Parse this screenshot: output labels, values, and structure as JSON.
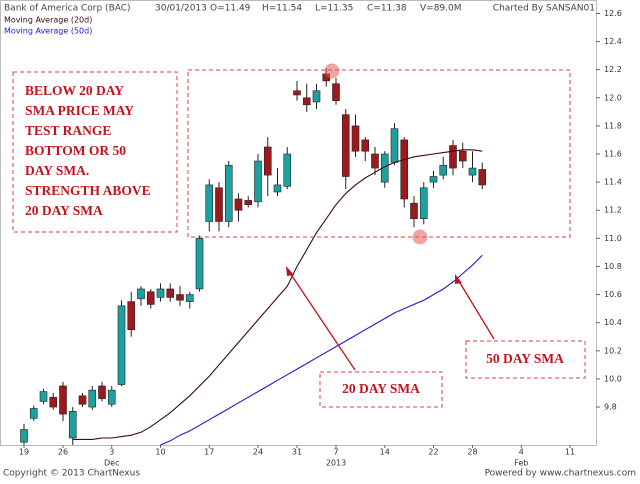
{
  "header": {
    "title": "Bank of America Corp (BAC)",
    "date": "30/01/2013",
    "open": "O=11.49",
    "high": "H=11.54",
    "low": "L=11.35",
    "close": "C=11.38",
    "volume": "V=89.0M",
    "credit": "Charted By SANSAN01"
  },
  "footer": {
    "copyright": "Copyright © 2013 ChartNexus",
    "powered": "Powered by www.chartnexus.com"
  },
  "annotations": {
    "note_lines": [
      "BELOW 20 DAY",
      "SMA PRICE MAY",
      "TEST RANGE",
      "BOTTOM OR 50",
      "DAY SMA.",
      "STRENGTH ABOVE",
      "20 DAY SMA"
    ],
    "sma20_label": "20 DAY SMA",
    "sma50_label": "50 DAY SMA"
  },
  "chart_data": {
    "type": "candlestick",
    "categories": [
      "19",
      null,
      null,
      null,
      "26",
      null,
      null,
      null,
      null,
      "3",
      null,
      null,
      null,
      null,
      "10",
      null,
      null,
      null,
      null,
      "17",
      null,
      null,
      null,
      null,
      "24",
      null,
      null,
      null,
      "31",
      null,
      null,
      null,
      "7",
      null,
      null,
      null,
      null,
      "14",
      null,
      null,
      null,
      null,
      "22",
      null,
      null,
      null,
      "28",
      null,
      null,
      null,
      null,
      "4",
      null,
      null,
      null,
      null,
      "11"
    ],
    "periods": [
      null,
      null,
      null,
      null,
      null,
      null,
      null,
      null,
      null,
      "Dec",
      null,
      null,
      null,
      null,
      null,
      null,
      null,
      null,
      null,
      null,
      null,
      null,
      null,
      null,
      null,
      null,
      null,
      null,
      null,
      null,
      null,
      null,
      "2013",
      null,
      null,
      null,
      null,
      null,
      null,
      null,
      null,
      null,
      null,
      null,
      null,
      null,
      null,
      null,
      null,
      null,
      null,
      "Feb",
      null,
      null,
      null,
      null,
      null
    ],
    "open": [
      9.55,
      9.72,
      9.84,
      9.87,
      9.95,
      9.58,
      9.88,
      9.8,
      9.95,
      9.82,
      9.96,
      10.55,
      10.57,
      10.62,
      10.58,
      10.64,
      10.6,
      10.55,
      10.64,
      11.12,
      11.36,
      11.12,
      11.28,
      11.27,
      11.26,
      11.65,
      11.33,
      11.37,
      12.05,
      12.0,
      11.97,
      12.17,
      12.1,
      11.88,
      11.8,
      11.7,
      11.6,
      11.4,
      11.54,
      11.7,
      11.25,
      11.14,
      11.4,
      11.45,
      11.66,
      11.62,
      11.45,
      11.49,
      null,
      null,
      null,
      null,
      null,
      null,
      null,
      null,
      null
    ],
    "high": [
      9.68,
      9.81,
      9.93,
      9.9,
      9.98,
      9.8,
      9.9,
      9.95,
      9.98,
      9.95,
      10.56,
      10.62,
      10.66,
      10.64,
      10.68,
      10.68,
      10.66,
      10.62,
      11.02,
      11.42,
      11.4,
      11.55,
      11.32,
      11.3,
      11.6,
      11.72,
      11.5,
      11.65,
      12.12,
      12.1,
      12.1,
      12.21,
      12.14,
      11.92,
      11.88,
      11.72,
      11.65,
      11.62,
      11.82,
      11.72,
      11.3,
      11.4,
      11.48,
      11.58,
      11.7,
      11.68,
      11.62,
      11.54,
      null,
      null,
      null,
      null,
      null,
      null,
      null,
      null,
      null
    ],
    "low": [
      9.53,
      9.7,
      9.82,
      9.78,
      9.7,
      9.53,
      9.8,
      9.78,
      9.84,
      9.8,
      9.95,
      10.3,
      10.52,
      10.5,
      10.55,
      10.55,
      10.52,
      10.5,
      10.62,
      11.05,
      11.05,
      11.08,
      11.12,
      11.22,
      11.22,
      11.3,
      11.3,
      11.35,
      11.98,
      11.9,
      11.92,
      12.08,
      11.95,
      11.35,
      11.58,
      11.55,
      11.45,
      11.36,
      11.52,
      11.22,
      11.08,
      11.1,
      11.36,
      11.42,
      11.45,
      11.5,
      11.4,
      11.35,
      null,
      null,
      null,
      null,
      null,
      null,
      null,
      null,
      null
    ],
    "close": [
      9.64,
      9.79,
      9.91,
      9.8,
      9.75,
      9.77,
      9.82,
      9.92,
      9.86,
      9.92,
      10.52,
      10.35,
      10.64,
      10.53,
      10.64,
      10.58,
      10.56,
      10.6,
      11.0,
      11.38,
      11.12,
      11.52,
      11.2,
      11.24,
      11.55,
      11.45,
      11.38,
      11.6,
      12.02,
      11.95,
      12.05,
      12.12,
      11.98,
      11.44,
      11.62,
      11.62,
      11.5,
      11.6,
      11.78,
      11.28,
      11.14,
      11.36,
      11.44,
      11.52,
      11.5,
      11.55,
      11.5,
      11.38,
      null,
      null,
      null,
      null,
      null,
      null,
      null,
      null,
      null
    ],
    "up_color": "#1fa0a0",
    "down_color": "#9c1a1e",
    "series": [
      {
        "name": "Moving Average (20d)",
        "color": "#3a0a1a",
        "values": [
          null,
          null,
          null,
          null,
          null,
          9.57,
          9.57,
          9.57,
          9.58,
          9.58,
          9.59,
          9.6,
          9.62,
          9.66,
          9.71,
          9.76,
          9.82,
          9.88,
          9.95,
          10.02,
          10.1,
          10.18,
          10.26,
          10.34,
          10.42,
          10.5,
          10.58,
          10.66,
          10.8,
          10.92,
          11.04,
          11.14,
          11.24,
          11.32,
          11.38,
          11.43,
          11.47,
          11.51,
          11.54,
          11.56,
          11.58,
          11.59,
          11.6,
          11.61,
          11.62,
          11.63,
          11.63,
          11.62,
          null,
          null,
          null,
          null,
          null,
          null,
          null,
          null,
          null
        ]
      },
      {
        "name": "Moving Average (50d)",
        "color": "#1a1adc",
        "values": [
          null,
          null,
          null,
          null,
          null,
          null,
          null,
          null,
          null,
          null,
          null,
          null,
          null,
          null,
          9.53,
          9.56,
          9.6,
          9.63,
          9.67,
          9.71,
          9.75,
          9.79,
          9.83,
          9.87,
          9.91,
          9.95,
          9.99,
          10.03,
          10.07,
          10.11,
          10.15,
          10.19,
          10.23,
          10.27,
          10.31,
          10.35,
          10.39,
          10.43,
          10.47,
          10.5,
          10.53,
          10.56,
          10.6,
          10.64,
          10.69,
          10.75,
          10.81,
          10.88,
          null,
          null,
          null,
          null,
          null,
          null,
          null,
          null,
          null
        ]
      }
    ],
    "ylim": [
      9.53,
      12.66
    ],
    "yticks": [
      9.8,
      {
        "value": 10,
        "label": "10.0"
      },
      10.2,
      10.4,
      10.6,
      10.8,
      {
        "value": 11,
        "label": "11.0"
      },
      11.2,
      11.4,
      11.6,
      11.8,
      {
        "value": 12,
        "label": "12.0"
      },
      12.2,
      12.4,
      12.6
    ]
  }
}
